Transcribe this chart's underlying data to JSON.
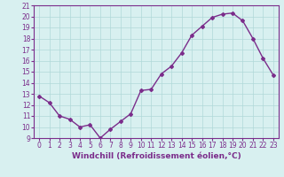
{
  "x": [
    0,
    1,
    2,
    3,
    4,
    5,
    6,
    7,
    8,
    9,
    10,
    11,
    12,
    13,
    14,
    15,
    16,
    17,
    18,
    19,
    20,
    21,
    22,
    23
  ],
  "y": [
    12.8,
    12.2,
    11.0,
    10.7,
    10.0,
    10.2,
    9.0,
    9.8,
    10.5,
    11.2,
    13.3,
    13.4,
    14.8,
    15.5,
    16.7,
    18.3,
    19.1,
    19.9,
    20.2,
    20.3,
    19.6,
    18.0,
    16.2,
    14.7
  ],
  "line_color": "#7b2d8b",
  "marker": "D",
  "marker_size": 2,
  "bg_color": "#d8f0f0",
  "grid_color": "#b0d8d8",
  "xlabel": "Windchill (Refroidissement éolien,°C)",
  "ylabel": "",
  "title": "",
  "xlim": [
    -0.5,
    23.5
  ],
  "ylim": [
    9,
    21
  ],
  "yticks": [
    9,
    10,
    11,
    12,
    13,
    14,
    15,
    16,
    17,
    18,
    19,
    20,
    21
  ],
  "xticks": [
    0,
    1,
    2,
    3,
    4,
    5,
    6,
    7,
    8,
    9,
    10,
    11,
    12,
    13,
    14,
    15,
    16,
    17,
    18,
    19,
    20,
    21,
    22,
    23
  ],
  "tick_label_fontsize": 5.5,
  "xlabel_fontsize": 6.5,
  "line_width": 1.0
}
